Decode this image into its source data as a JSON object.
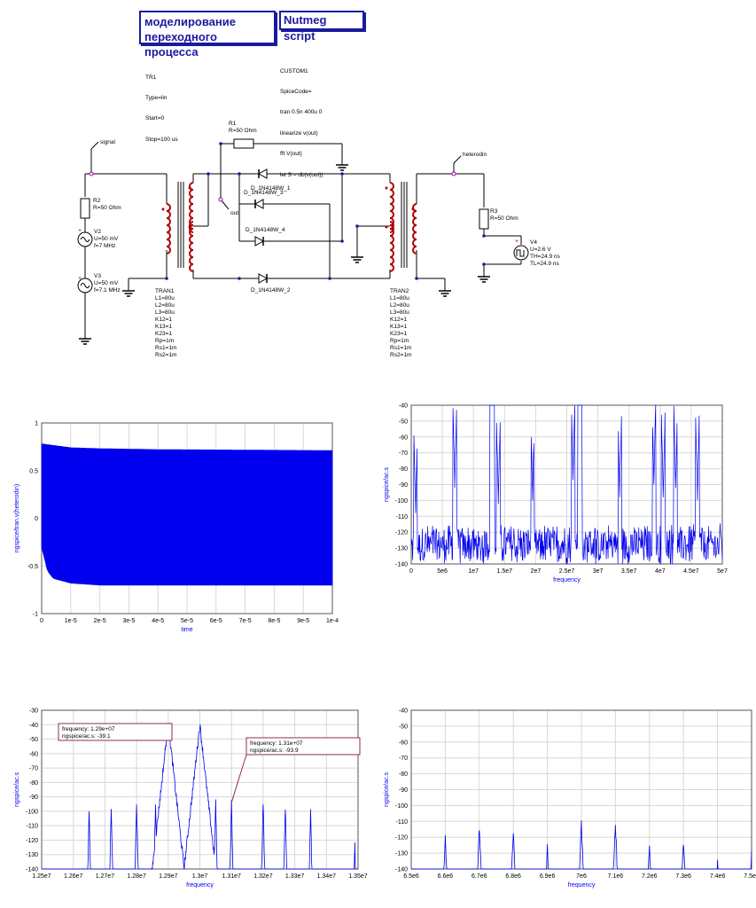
{
  "header": {
    "title_line1": "моделирование",
    "title_line2": "переходного процесса",
    "nutmeg_label": "Nutmeg script"
  },
  "tr1": {
    "lines": [
      "TR1",
      "Type=lin",
      "Start=0",
      "Stop=100 us"
    ]
  },
  "custom1": {
    "lines": [
      "CUSTOM1",
      "SpiceCode=",
      "tran 0.5n 400u 0",
      "linearize v(out)",
      "fft V(out)",
      "let S = db(v(out))"
    ]
  },
  "schematic": {
    "labels": {
      "r1_name": "R1",
      "r1_val": "R=50 Ohm",
      "signal": "signal",
      "heterodin": "heterodin",
      "out": "out",
      "r2_name": "R2",
      "r2_val": "R=50 Ohm",
      "v2_name": "V2",
      "v2_u": "U=50 mV",
      "v2_f": "f=7 MHz",
      "v3_name": "V3",
      "v3_u": "U=50 mV",
      "v3_f": "f=7.1 MHz",
      "r3_name": "R3",
      "r3_val": "R=50 Ohm",
      "v4_name": "V4",
      "v4_u": "U=2.6 V",
      "v4_th": "TH=24.9 ns",
      "v4_tl": "TL=24.9 ns",
      "d1": "D_1N4148W_1",
      "d3": "D_1N4148W_3",
      "d4": "D_1N4148W_4",
      "d2": "D_1N4148W_2"
    },
    "tran1": [
      "TRAN1",
      "L1=80u",
      "L2=80u",
      "L3=80u",
      "K12=1",
      "K13=1",
      "K23=1",
      "Rp=1m",
      "Rs1=1m",
      "Rs2=1m"
    ],
    "tran2": [
      "TRAN2",
      "L1=80u",
      "L2=80u",
      "L3=80u",
      "K12=1",
      "K13=1",
      "K23=1",
      "Rp=1m",
      "Rs1=1m",
      "Rs2=1m"
    ]
  },
  "colors": {
    "trace": "#0000ee",
    "text_blue": "#1a1aa0",
    "component": "#b00000",
    "grid": "#d8d8d8"
  },
  "chart_data": [
    {
      "type": "line",
      "id": "transient",
      "xlabel": "time",
      "ylabel": "ngspice/tran.v(heterodin)",
      "xlim": [
        0,
        0.0001
      ],
      "ylim": [
        -1,
        1
      ],
      "x_ticks": [
        "0",
        "1e-5",
        "2e-5",
        "3e-5",
        "4e-5",
        "5e-5",
        "6e-5",
        "7e-5",
        "8e-5",
        "9e-5",
        "1e-4"
      ],
      "y_ticks": [
        "1",
        "0.5",
        "0",
        "-0.5",
        "-1"
      ],
      "envelope_upper": [
        [
          0,
          0.78
        ],
        [
          5e-06,
          0.76
        ],
        [
          1e-05,
          0.74
        ],
        [
          2e-05,
          0.73
        ],
        [
          4e-05,
          0.72
        ],
        [
          0.0001,
          0.71
        ]
      ],
      "envelope_lower": [
        [
          0,
          -0.3
        ],
        [
          1e-06,
          -0.42
        ],
        [
          2e-06,
          -0.55
        ],
        [
          4e-06,
          -0.63
        ],
        [
          1e-05,
          -0.68
        ],
        [
          2e-05,
          -0.7
        ],
        [
          0.0001,
          -0.7
        ]
      ],
      "grid": true
    },
    {
      "type": "line",
      "id": "spectrum_full",
      "xlabel": "frequency",
      "ylabel": "ngspice/ac.s",
      "xlim": [
        0,
        50000000
      ],
      "ylim": [
        -140,
        -40
      ],
      "x_ticks": [
        "0",
        "5e6",
        "1e7",
        "1.5e7",
        "2e7",
        "2.5e7",
        "3e7",
        "3.5e7",
        "4e7",
        "4.5e7",
        "5e7"
      ],
      "y_ticks": [
        "-40",
        "-50",
        "-60",
        "-70",
        "-80",
        "-90",
        "-100",
        "-110",
        "-120",
        "-130",
        "-140"
      ],
      "noise_floor": -125,
      "peaks": [
        [
          700000,
          -108
        ],
        [
          7000000,
          -92
        ],
        [
          12900000,
          -39.1
        ],
        [
          13100000,
          -40
        ],
        [
          14000000,
          -102
        ],
        [
          19500000,
          -100
        ],
        [
          26000000,
          -87
        ],
        [
          27000000,
          -40
        ],
        [
          27200000,
          -58
        ],
        [
          33500000,
          -98
        ],
        [
          39000000,
          -90
        ],
        [
          40500000,
          -98
        ],
        [
          42500000,
          -92
        ],
        [
          46000000,
          -100
        ]
      ],
      "grid": true
    },
    {
      "type": "line",
      "id": "spectrum_zoom_13mhz",
      "xlabel": "frequency",
      "ylabel": "ngspice/ac.s",
      "xlim": [
        12500000,
        13500000
      ],
      "ylim": [
        -140,
        -30
      ],
      "x_ticks": [
        "1.25e7",
        "1.26e7",
        "1.27e7",
        "1.28e7",
        "1.29e7",
        "1.3e7",
        "1.31e7",
        "1.32e7",
        "1.33e7",
        "1.34e7",
        "1.35e7"
      ],
      "y_ticks": [
        "-30",
        "-40",
        "-50",
        "-60",
        "-70",
        "-80",
        "-90",
        "-100",
        "-110",
        "-120",
        "-130",
        "-140"
      ],
      "floor": -140,
      "peaks": [
        [
          12650000,
          -99
        ],
        [
          12720000,
          -96
        ],
        [
          12800000,
          -93
        ],
        [
          12860000,
          -93
        ],
        [
          12900000,
          -39.1
        ],
        [
          13000000,
          -40
        ],
        [
          13050000,
          -93
        ],
        [
          13100000,
          -93.9
        ],
        [
          13200000,
          -93
        ],
        [
          13270000,
          -96
        ],
        [
          13350000,
          -99
        ],
        [
          13490000,
          -123
        ]
      ],
      "annotations": [
        {
          "line1": "frequency: 1.29e+07",
          "line2": "ngspice/ac.s: -39.1",
          "x": 12900000,
          "y": -39.1
        },
        {
          "line1": "frequency: 1.31e+07",
          "line2": "ngspice/ac.s: -93.9",
          "x": 13100000,
          "y": -93.9
        }
      ],
      "grid": true
    },
    {
      "type": "line",
      "id": "spectrum_zoom_7mhz",
      "xlabel": "frequency",
      "ylabel": "ngspice/ac.s",
      "xlim": [
        6500000,
        7500000
      ],
      "ylim": [
        -140,
        -40
      ],
      "x_ticks": [
        "6.5e6",
        "6.6e6",
        "6.7e6",
        "6.8e6",
        "6.9e6",
        "7e6",
        "7.1e6",
        "7.2e6",
        "7.3e6",
        "7.4e6",
        "7.5e6"
      ],
      "y_ticks": [
        "-40",
        "-50",
        "-60",
        "-70",
        "-80",
        "-90",
        "-100",
        "-110",
        "-120",
        "-130",
        "-140"
      ],
      "floor": -140,
      "peaks": [
        [
          6600000,
          -120
        ],
        [
          6700000,
          -114
        ],
        [
          6800000,
          -115
        ],
        [
          6900000,
          -125
        ],
        [
          7000000,
          -112
        ],
        [
          7100000,
          -113
        ],
        [
          7200000,
          -125
        ],
        [
          7300000,
          -123
        ],
        [
          7400000,
          -134
        ],
        [
          7500000,
          -130
        ]
      ],
      "grid": true
    }
  ]
}
